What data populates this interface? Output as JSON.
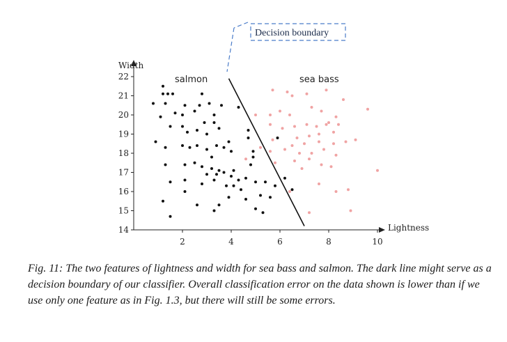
{
  "chart_data": {
    "type": "scatter",
    "xlabel": "Lightness",
    "ylabel": "Width",
    "xlim": [
      0,
      10.5
    ],
    "ylim": [
      14,
      22
    ],
    "x_ticks": [
      2,
      4,
      6,
      8,
      10
    ],
    "y_ticks": [
      14,
      15,
      16,
      17,
      18,
      19,
      20,
      21,
      22
    ],
    "colors": {
      "salmon": "#111111",
      "sea_bass": "#f0a3a3",
      "boundary": "#111111",
      "callout": "#4a7cc9"
    },
    "series": [
      {
        "name": "salmon",
        "points": [
          [
            1.2,
            21.5
          ],
          [
            1.4,
            21.1
          ],
          [
            1.6,
            21.1
          ],
          [
            1.2,
            21.1
          ],
          [
            0.8,
            20.6
          ],
          [
            1.3,
            20.6
          ],
          [
            1.7,
            20.1
          ],
          [
            2.0,
            20.0
          ],
          [
            1.1,
            19.9
          ],
          [
            2.1,
            20.5
          ],
          [
            1.5,
            19.4
          ],
          [
            2.5,
            20.2
          ],
          [
            2.7,
            20.5
          ],
          [
            2.8,
            21.1
          ],
          [
            3.1,
            20.6
          ],
          [
            3.3,
            20.0
          ],
          [
            3.6,
            20.5
          ],
          [
            2.0,
            19.4
          ],
          [
            2.2,
            19.1
          ],
          [
            2.6,
            19.2
          ],
          [
            2.9,
            19.6
          ],
          [
            3.3,
            19.6
          ],
          [
            3.5,
            19.3
          ],
          [
            3.0,
            19.0
          ],
          [
            0.9,
            18.6
          ],
          [
            1.3,
            18.3
          ],
          [
            2.0,
            18.4
          ],
          [
            2.3,
            18.3
          ],
          [
            2.6,
            18.4
          ],
          [
            3.0,
            18.2
          ],
          [
            3.4,
            18.4
          ],
          [
            3.7,
            18.3
          ],
          [
            3.9,
            18.6
          ],
          [
            4.0,
            18.1
          ],
          [
            4.3,
            20.4
          ],
          [
            4.7,
            19.2
          ],
          [
            4.7,
            18.8
          ],
          [
            4.9,
            18.1
          ],
          [
            3.2,
            17.8
          ],
          [
            1.3,
            17.4
          ],
          [
            2.1,
            17.4
          ],
          [
            2.5,
            17.5
          ],
          [
            2.8,
            17.3
          ],
          [
            3.2,
            17.2
          ],
          [
            3.5,
            17.1
          ],
          [
            3.0,
            16.9
          ],
          [
            3.4,
            16.9
          ],
          [
            3.7,
            17.0
          ],
          [
            4.1,
            17.1
          ],
          [
            4.0,
            16.8
          ],
          [
            4.3,
            16.6
          ],
          [
            4.6,
            16.7
          ],
          [
            4.8,
            17.4
          ],
          [
            4.9,
            17.8
          ],
          [
            5.0,
            16.5
          ],
          [
            5.4,
            16.5
          ],
          [
            3.8,
            16.3
          ],
          [
            4.1,
            16.3
          ],
          [
            3.3,
            16.6
          ],
          [
            2.8,
            16.4
          ],
          [
            2.1,
            16.6
          ],
          [
            1.5,
            16.5
          ],
          [
            2.1,
            16.0
          ],
          [
            4.4,
            16.1
          ],
          [
            4.6,
            15.6
          ],
          [
            5.2,
            15.8
          ],
          [
            5.8,
            16.3
          ],
          [
            6.2,
            16.7
          ],
          [
            6.5,
            16.1
          ],
          [
            5.9,
            18.8
          ],
          [
            5.0,
            15.1
          ],
          [
            5.3,
            14.9
          ],
          [
            1.2,
            15.5
          ],
          [
            1.5,
            14.7
          ],
          [
            2.6,
            15.3
          ],
          [
            3.3,
            15.0
          ],
          [
            3.5,
            15.3
          ],
          [
            3.9,
            15.7
          ],
          [
            5.6,
            15.7
          ]
        ]
      },
      {
        "name": "sea bass",
        "points": [
          [
            5.7,
            21.3
          ],
          [
            6.3,
            21.2
          ],
          [
            6.5,
            21.0
          ],
          [
            7.1,
            21.1
          ],
          [
            7.3,
            20.4
          ],
          [
            7.9,
            21.3
          ],
          [
            8.6,
            20.8
          ],
          [
            5.0,
            20.0
          ],
          [
            5.6,
            20.0
          ],
          [
            6.0,
            20.2
          ],
          [
            6.4,
            20.0
          ],
          [
            7.7,
            20.2
          ],
          [
            8.3,
            19.9
          ],
          [
            8.0,
            19.6
          ],
          [
            5.6,
            19.5
          ],
          [
            6.1,
            19.3
          ],
          [
            6.6,
            19.4
          ],
          [
            7.1,
            19.5
          ],
          [
            7.5,
            19.4
          ],
          [
            7.9,
            19.5
          ],
          [
            8.4,
            19.5
          ],
          [
            8.2,
            19.1
          ],
          [
            7.6,
            19.0
          ],
          [
            7.2,
            18.9
          ],
          [
            6.7,
            18.8
          ],
          [
            5.7,
            18.7
          ],
          [
            6.5,
            18.4
          ],
          [
            7.0,
            18.5
          ],
          [
            7.6,
            18.6
          ],
          [
            8.2,
            18.5
          ],
          [
            8.7,
            18.6
          ],
          [
            9.1,
            18.7
          ],
          [
            5.2,
            18.3
          ],
          [
            5.6,
            18.1
          ],
          [
            6.2,
            18.2
          ],
          [
            6.8,
            18.0
          ],
          [
            7.3,
            18.0
          ],
          [
            7.8,
            18.2
          ],
          [
            8.3,
            17.9
          ],
          [
            4.6,
            17.7
          ],
          [
            6.6,
            17.6
          ],
          [
            7.2,
            17.7
          ],
          [
            7.7,
            17.4
          ],
          [
            5.8,
            17.5
          ],
          [
            6.9,
            17.2
          ],
          [
            8.1,
            17.3
          ],
          [
            10.0,
            17.1
          ],
          [
            6.4,
            16.0
          ],
          [
            7.6,
            16.4
          ],
          [
            8.3,
            16.0
          ],
          [
            8.8,
            16.1
          ],
          [
            8.9,
            15.0
          ],
          [
            7.2,
            14.9
          ],
          [
            9.6,
            20.3
          ]
        ]
      }
    ],
    "decision_boundary": {
      "from": [
        3.9,
        21.9
      ],
      "to": [
        7.0,
        14.2
      ]
    },
    "annotations": {
      "series_labels": [
        "salmon",
        "sea bass"
      ],
      "callout": "Decision boundary"
    }
  },
  "caption": "Fig. 11: The two features of lightness and width for sea bass and salmon. The dark line might serve as a decision boundary of our classifier. Overall classification error on the data shown is lower than if we use only one feature as in Fig. 1.3, but there will still be some errors."
}
